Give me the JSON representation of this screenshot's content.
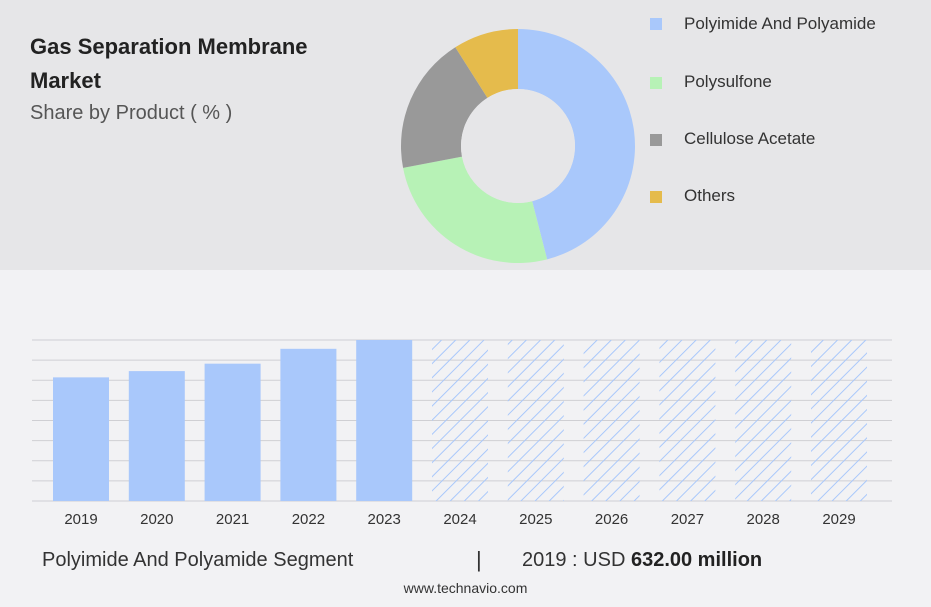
{
  "header": {
    "title": "Gas Separation Membrane Market",
    "subtitle": "Share by Product ( % )"
  },
  "legend": [
    {
      "label": "Polyimide And Polyamide",
      "color": "#a9c8fb"
    },
    {
      "label": "Polysulfone",
      "color": "#b7f2b6"
    },
    {
      "label": "Cellulose Acetate",
      "color": "#999999"
    },
    {
      "label": "Others",
      "color": "#e5bb4c"
    }
  ],
  "footer": {
    "segment": "Polyimide And Polyamide Segment",
    "divider": "|",
    "value_prefix": "2019 : USD",
    "value": "632.00 million"
  },
  "website": "www.technavio.com",
  "chart_data": [
    {
      "type": "pie",
      "title": "Share by Product ( % )",
      "categories": [
        "Polyimide And Polyamide",
        "Polysulfone",
        "Cellulose Acetate",
        "Others"
      ],
      "values": [
        46,
        26,
        19,
        9
      ],
      "colors": [
        "#a9c8fb",
        "#b7f2b6",
        "#999999",
        "#e5bb4c"
      ]
    },
    {
      "type": "bar",
      "categories": [
        "2019",
        "2020",
        "2021",
        "2022",
        "2023",
        "2024",
        "2025",
        "2026",
        "2027",
        "2028",
        "2029"
      ],
      "values": [
        632,
        664,
        702,
        778,
        823,
        823,
        823,
        823,
        823,
        823,
        823
      ],
      "forecast": [
        false,
        false,
        false,
        false,
        false,
        true,
        true,
        true,
        true,
        true,
        true
      ],
      "bar_color": "#a9c8fb",
      "forecast_style": "diagonal-hatch",
      "ylim": [
        0,
        823
      ],
      "grid": true
    }
  ]
}
